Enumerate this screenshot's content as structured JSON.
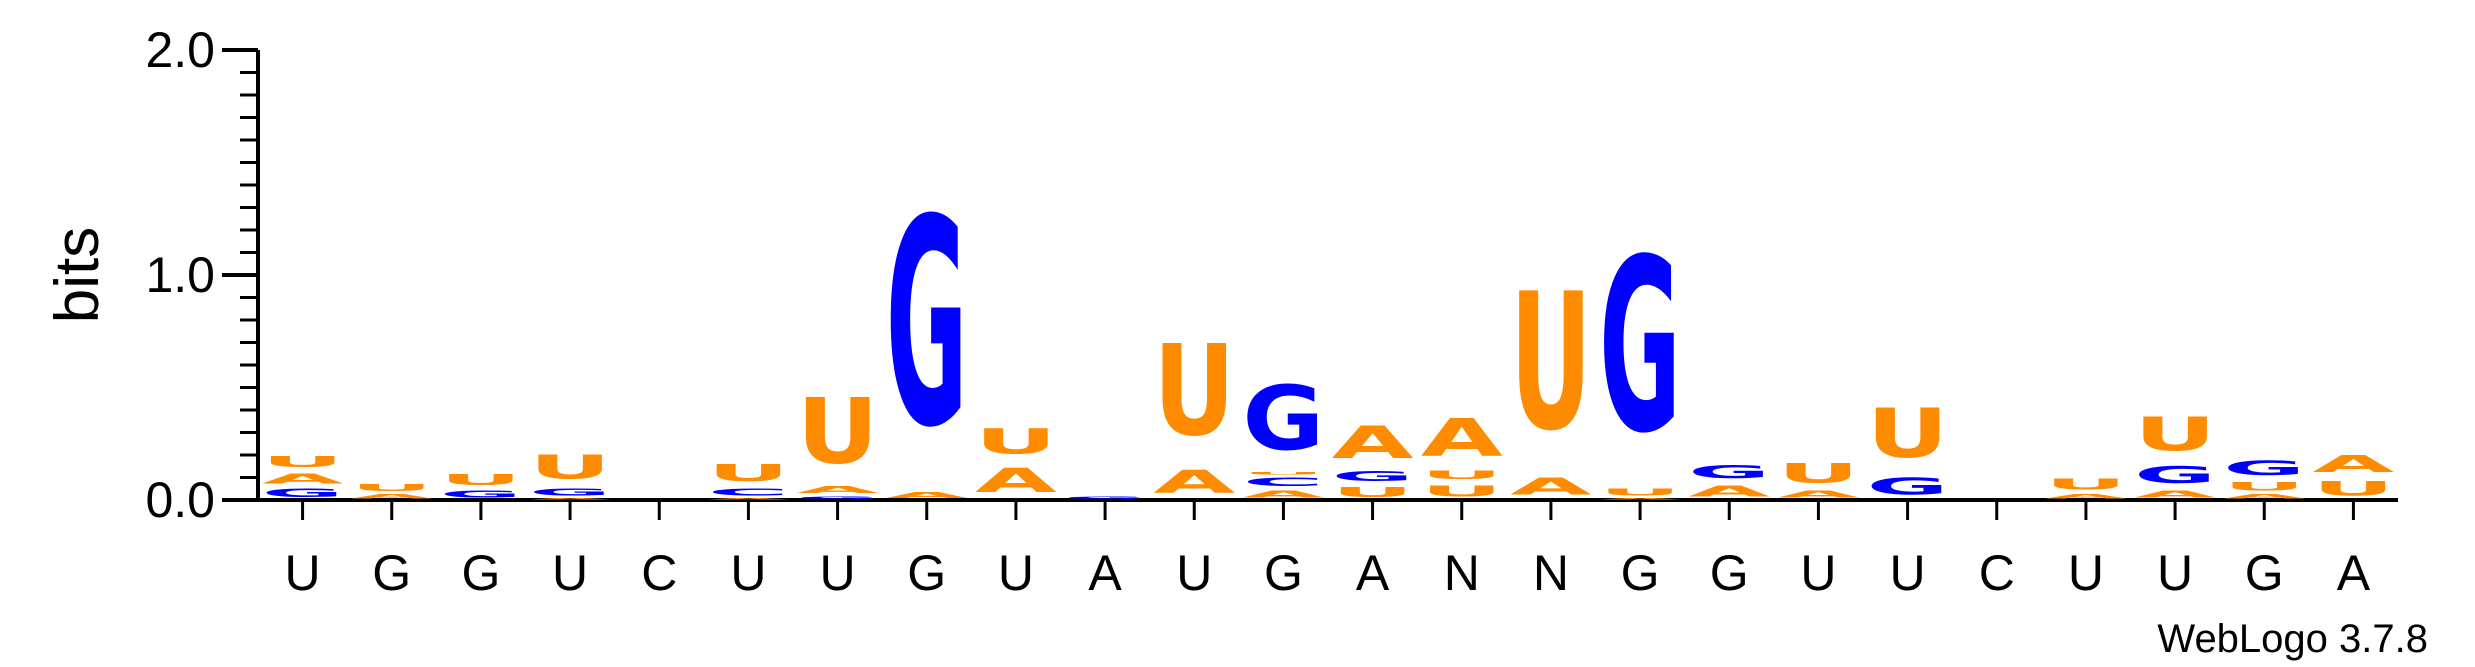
{
  "chart_data": {
    "type": "sequence-logo",
    "ylabel": "bits",
    "ylim": [
      0,
      2.0
    ],
    "yticks": [
      "0.0",
      "1.0",
      "2.0"
    ],
    "credit": "WebLogo 3.7.8",
    "colors": {
      "G": "#0000ff",
      "A": "#ff8c00",
      "U": "#ff8c00",
      "C": "#0000ff"
    },
    "positions": [
      {
        "label": "U",
        "stack": [
          [
            "G",
            0.06
          ],
          [
            "A",
            0.07
          ],
          [
            "U",
            0.08
          ]
        ]
      },
      {
        "label": "G",
        "stack": [
          [
            "A",
            0.03
          ],
          [
            "U",
            0.05
          ]
        ]
      },
      {
        "label": "G",
        "stack": [
          [
            "G",
            0.05
          ],
          [
            "U",
            0.08
          ]
        ]
      },
      {
        "label": "U",
        "stack": [
          [
            "A",
            0.01
          ],
          [
            "G",
            0.05
          ],
          [
            "U",
            0.17
          ]
        ]
      },
      {
        "label": "C",
        "stack": []
      },
      {
        "label": "U",
        "stack": [
          [
            "A",
            0.01
          ],
          [
            "C",
            0.05
          ],
          [
            "U",
            0.12
          ]
        ]
      },
      {
        "label": "U",
        "stack": [
          [
            "G",
            0.02
          ],
          [
            "A",
            0.05
          ],
          [
            "U",
            0.47
          ]
        ]
      },
      {
        "label": "G",
        "stack": [
          [
            "A",
            0.04
          ],
          [
            "G",
            1.48
          ]
        ]
      },
      {
        "label": "U",
        "stack": [
          [
            "A",
            0.17
          ],
          [
            "U",
            0.18
          ]
        ]
      },
      {
        "label": "A",
        "stack": [
          [
            "G",
            0.02
          ]
        ]
      },
      {
        "label": "U",
        "stack": [
          [
            "A",
            0.16
          ],
          [
            "U",
            0.65
          ]
        ]
      },
      {
        "label": "G",
        "stack": [
          [
            "A",
            0.05
          ],
          [
            "C",
            0.06
          ],
          [
            "U",
            0.02
          ],
          [
            "G",
            0.46
          ]
        ]
      },
      {
        "label": "A",
        "stack": [
          [
            "U",
            0.07
          ],
          [
            "G",
            0.07
          ],
          [
            "A",
            0.23
          ]
        ]
      },
      {
        "label": "N",
        "stack": [
          [
            "U",
            0.08
          ],
          [
            "U",
            0.06
          ],
          [
            "A",
            0.27
          ]
        ]
      },
      {
        "label": "N",
        "stack": [
          [
            "A",
            0.12
          ],
          [
            "U",
            0.98
          ]
        ]
      },
      {
        "label": "G",
        "stack": [
          [
            "A",
            0.01
          ],
          [
            "U",
            0.05
          ],
          [
            "G",
            1.24
          ]
        ]
      },
      {
        "label": "G",
        "stack": [
          [
            "A",
            0.08
          ],
          [
            "G",
            0.09
          ]
        ]
      },
      {
        "label": "U",
        "stack": [
          [
            "A",
            0.05
          ],
          [
            "U",
            0.14
          ]
        ]
      },
      {
        "label": "U",
        "stack": [
          [
            "G",
            0.12
          ],
          [
            "U",
            0.35
          ]
        ]
      },
      {
        "label": "C",
        "stack": []
      },
      {
        "label": "U",
        "stack": [
          [
            "A",
            0.03
          ],
          [
            "U",
            0.08
          ]
        ]
      },
      {
        "label": "U",
        "stack": [
          [
            "A",
            0.05
          ],
          [
            "G",
            0.12
          ],
          [
            "U",
            0.24
          ]
        ]
      },
      {
        "label": "G",
        "stack": [
          [
            "A",
            0.03
          ],
          [
            "U",
            0.06
          ],
          [
            "G",
            0.1
          ]
        ]
      },
      {
        "label": "A",
        "stack": [
          [
            "U",
            0.1
          ],
          [
            "A",
            0.12
          ]
        ]
      }
    ]
  }
}
